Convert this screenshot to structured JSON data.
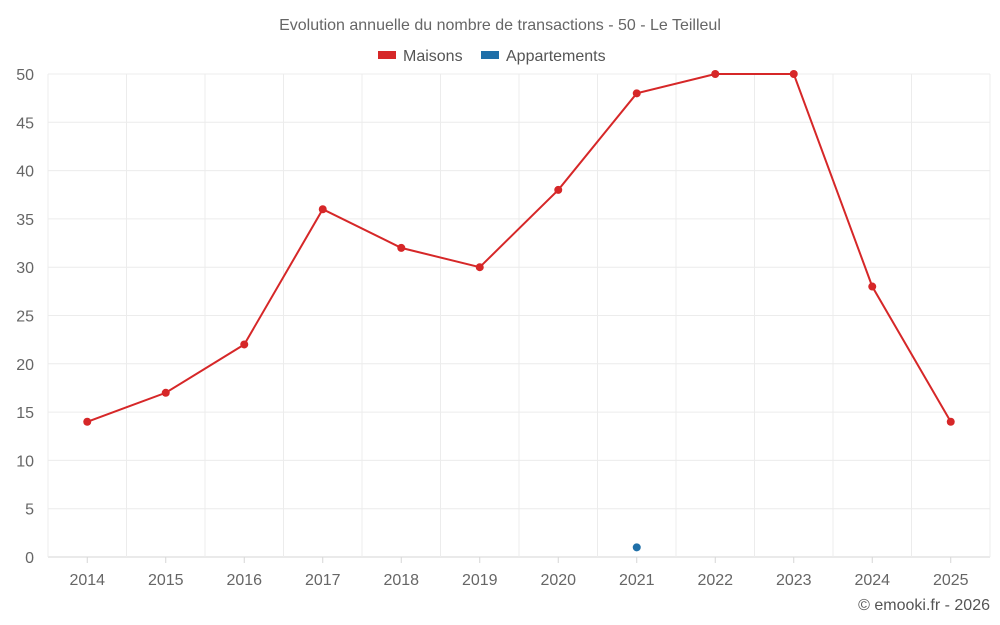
{
  "chart_data": {
    "type": "line",
    "title": "Evolution annuelle du nombre de transactions - 50 - Le Teilleul",
    "categories": [
      "2014",
      "2015",
      "2016",
      "2017",
      "2018",
      "2019",
      "2020",
      "2021",
      "2022",
      "2023",
      "2024",
      "2025"
    ],
    "series": [
      {
        "name": "Maisons",
        "color": "#d62728",
        "values": [
          14,
          17,
          22,
          36,
          32,
          30,
          38,
          48,
          50,
          50,
          28,
          14
        ]
      },
      {
        "name": "Appartements",
        "color": "#1f6fa8",
        "values": [
          null,
          null,
          null,
          null,
          null,
          null,
          null,
          1,
          null,
          null,
          null,
          null
        ]
      }
    ],
    "ylim": [
      0,
      50
    ],
    "yticks": [
      0,
      5,
      10,
      15,
      20,
      25,
      30,
      35,
      40,
      45,
      50
    ],
    "grid": true,
    "legend_position": "top-center"
  },
  "credit": "© emooki.fr - 2026"
}
